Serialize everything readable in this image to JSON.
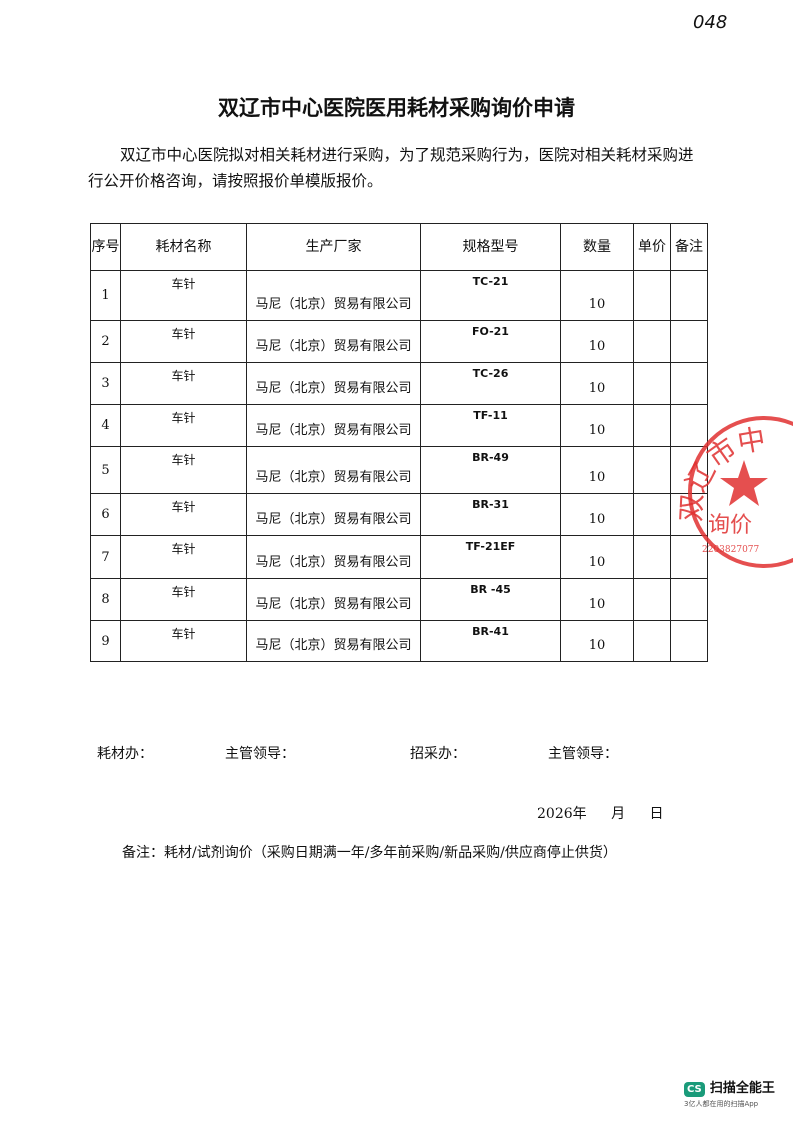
{
  "page_number": "048",
  "title": "双辽市中心医院医用耗材采购询价申请",
  "intro": "双辽市中心医院拟对相关耗材进行采购，为了规范采购行为，医院对相关耗材采购进行公开价格咨询，请按照报价单模版报价。",
  "table": {
    "headers": [
      "序号",
      "耗材名称",
      "生产厂家",
      "规格型号",
      "数量",
      "单价",
      "备注"
    ],
    "rows": [
      [
        1,
        "车针",
        "马尼（北京）贸易有限公司",
        "TC-21",
        10
      ],
      [
        2,
        "车针",
        "马尼（北京）贸易有限公司",
        "FO-21",
        10
      ],
      [
        3,
        "车针",
        "马尼（北京）贸易有限公司",
        "TC-26",
        10
      ],
      [
        4,
        "车针",
        "马尼（北京）贸易有限公司",
        "TF-11",
        10
      ],
      [
        5,
        "车针",
        "马尼（北京）贸易有限公司",
        "BR-49",
        10
      ],
      [
        6,
        "车针",
        "马尼（北京）贸易有限公司",
        "BR-31",
        10
      ],
      [
        7,
        "车针",
        "马尼（北京）贸易有限公司",
        "TF-21EF",
        10
      ],
      [
        8,
        "车针",
        "马尼（北京）贸易有限公司",
        "BR -45",
        10
      ],
      [
        9,
        "车针",
        "马尼（北京）贸易有限公司",
        "BR-41",
        10
      ]
    ]
  },
  "signatures": [
    "耗材办：",
    "主管领导：",
    "招采办：",
    "主管领导："
  ],
  "date": {
    "year": "2026",
    "year_unit": "年",
    "month_unit": "月",
    "day_unit": "日"
  },
  "note": "备注：耗材/试剂询价（采购日期满一年/多年前采购/新品采购/供应商停止供货）",
  "stamp": {
    "top": "双辽市中",
    "bottom": "询价",
    "code": "2203827077"
  },
  "watermark": {
    "logo": "CS",
    "name": "扫描全能王",
    "slogan": "3亿人都在用的扫描App"
  }
}
